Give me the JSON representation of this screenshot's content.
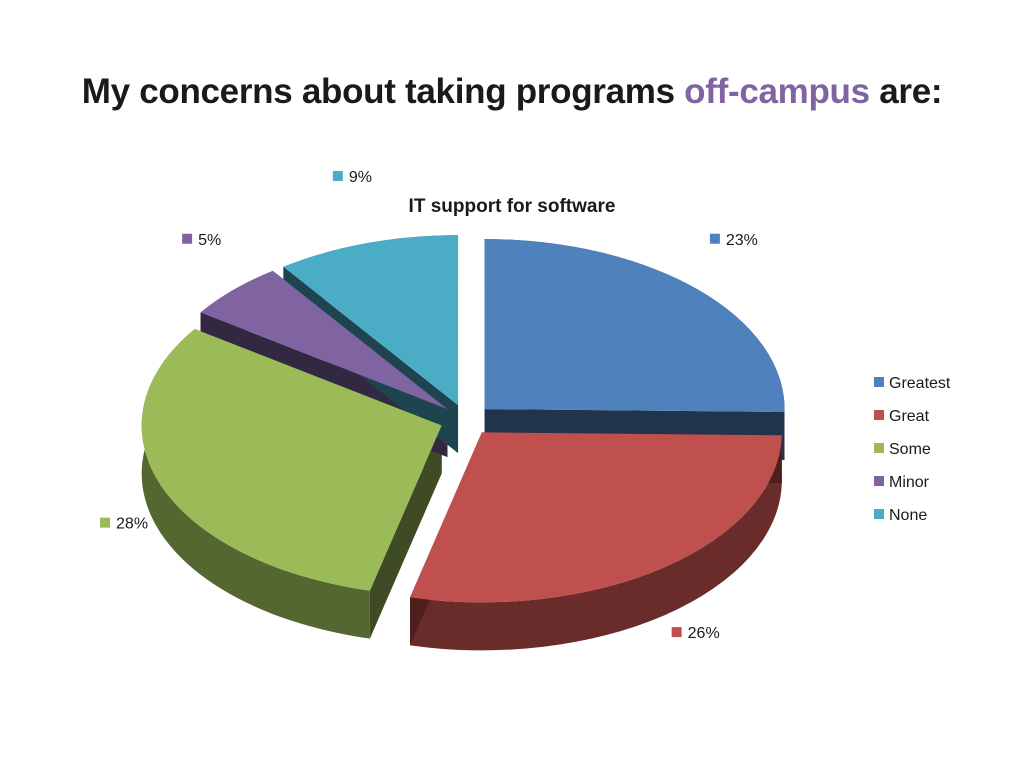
{
  "slide": {
    "title_pre": "My concerns about taking programs ",
    "title_accent": "off-campus",
    "title_post": " are:",
    "accent_color": "#8064a2"
  },
  "chart_data": {
    "type": "pie",
    "title": "IT support for software",
    "categories": [
      "Greatest",
      "Great",
      "Some",
      "Minor",
      "None"
    ],
    "values": [
      23,
      26,
      28,
      5,
      9
    ],
    "labels": [
      "23%",
      "26%",
      "28%",
      "5%",
      "9%"
    ],
    "colors": [
      "#4f81bd",
      "#c0504d",
      "#9bbb59",
      "#8064a2",
      "#4bacc6"
    ],
    "exploded": true,
    "three_d": true,
    "legend": "right"
  }
}
